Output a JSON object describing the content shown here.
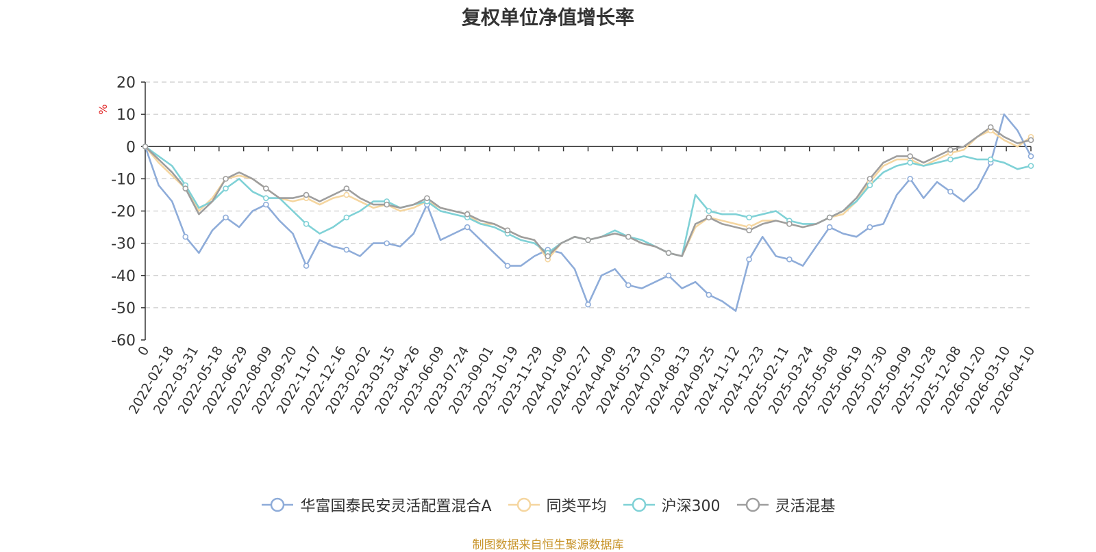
{
  "chart_data": {
    "type": "line",
    "title": "复权单位净值增长率",
    "ylabel": "%",
    "ylim": [
      -60,
      20
    ],
    "yticks": [
      20,
      10,
      0,
      -10,
      -20,
      -30,
      -40,
      -50,
      -60
    ],
    "grid": true,
    "legend_position": "bottom",
    "x_tick_labels": [
      "0",
      "2022-02-18",
      "2022-03-31",
      "2022-05-18",
      "2022-06-29",
      "2022-08-09",
      "2022-09-20",
      "2022-11-07",
      "2022-12-16",
      "2023-02-02",
      "2023-03-15",
      "2023-04-26",
      "2023-06-09",
      "2023-07-24",
      "2023-09-01",
      "2023-10-19",
      "2023-11-29",
      "2024-01-09",
      "2024-02-27",
      "2024-04-09",
      "2024-05-23",
      "2024-07-03",
      "2024-08-13",
      "2024-09-25",
      "2024-11-12",
      "2024-12-23",
      "2025-02-11",
      "2025-03-24",
      "2025-05-08",
      "2025-06-19",
      "2025-07-30",
      "2025-09-09",
      "2025-10-28",
      "2025-12-08",
      "2026-01-20",
      "2026-03-10",
      "2026-04-10"
    ],
    "series": [
      {
        "name": "华富国泰民安灵活配置混合A",
        "color": "#8eacd9",
        "values": [
          0,
          -12,
          -17,
          -28,
          -33,
          -26,
          -22,
          -25,
          -20,
          -18,
          -23,
          -27,
          -37,
          -29,
          -31,
          -32,
          -34,
          -30,
          -30,
          -31,
          -27,
          -18,
          -29,
          -27,
          -25,
          -29,
          -33,
          -37,
          -37,
          -34,
          -32,
          -33,
          -38,
          -49,
          -40,
          -38,
          -43,
          -44,
          -42,
          -40,
          -44,
          -42,
          -46,
          -48,
          -51,
          -35,
          -28,
          -34,
          -35,
          -37,
          -31,
          -25,
          -27,
          -28,
          -25,
          -24,
          -15,
          -10,
          -16,
          -11,
          -14,
          -17,
          -13,
          -5,
          10,
          5,
          -3
        ]
      },
      {
        "name": "同类平均",
        "color": "#f5d6a0",
        "values": [
          0,
          -5,
          -9,
          -13,
          -20,
          -16,
          -10,
          -9,
          -10,
          -13,
          -16,
          -17,
          -16,
          -18,
          -16,
          -15,
          -17,
          -19,
          -18,
          -20,
          -19,
          -17,
          -19,
          -20,
          -21,
          -24,
          -24,
          -26,
          -28,
          -29,
          -35,
          -30,
          -28,
          -29,
          -28,
          -27,
          -28,
          -30,
          -31,
          -33,
          -34,
          -25,
          -22,
          -23,
          -24,
          -25,
          -23,
          -23,
          -24,
          -25,
          -24,
          -22,
          -21,
          -17,
          -11,
          -6,
          -4,
          -4,
          -6,
          -4,
          -2,
          -1,
          3,
          5,
          2,
          0,
          3
        ]
      },
      {
        "name": "沪深300",
        "color": "#7fd1d6",
        "values": [
          0,
          -3,
          -6,
          -12,
          -19,
          -17,
          -13,
          -10,
          -14,
          -16,
          -16,
          -20,
          -24,
          -27,
          -25,
          -22,
          -20,
          -17,
          -17,
          -19,
          -18,
          -17,
          -20,
          -21,
          -22,
          -24,
          -25,
          -27,
          -29,
          -30,
          -33,
          -30,
          -28,
          -29,
          -28,
          -26,
          -28,
          -29,
          -31,
          -33,
          -34,
          -15,
          -20,
          -21,
          -21,
          -22,
          -21,
          -20,
          -23,
          -24,
          -24,
          -22,
          -20,
          -17,
          -12,
          -8,
          -6,
          -5,
          -6,
          -5,
          -4,
          -3,
          -4,
          -4,
          -5,
          -7,
          -6
        ]
      },
      {
        "name": "灵活混基",
        "color": "#9e9e9e",
        "values": [
          0,
          -4,
          -8,
          -13,
          -21,
          -17,
          -10,
          -8,
          -10,
          -13,
          -16,
          -16,
          -15,
          -17,
          -15,
          -13,
          -16,
          -18,
          -18,
          -19,
          -18,
          -16,
          -19,
          -20,
          -21,
          -23,
          -24,
          -26,
          -28,
          -29,
          -34,
          -30,
          -28,
          -29,
          -28,
          -27,
          -28,
          -30,
          -31,
          -33,
          -34,
          -24,
          -22,
          -24,
          -25,
          -26,
          -24,
          -23,
          -24,
          -25,
          -24,
          -22,
          -20,
          -16,
          -10,
          -5,
          -3,
          -3,
          -5,
          -3,
          -1,
          0,
          3,
          6,
          3,
          1,
          2
        ]
      }
    ]
  },
  "legend": {
    "items": [
      {
        "label": "华富国泰民安灵活配置混合A",
        "color": "#8eacd9"
      },
      {
        "label": "同类平均",
        "color": "#f5d6a0"
      },
      {
        "label": "沪深300",
        "color": "#7fd1d6"
      },
      {
        "label": "灵活混基",
        "color": "#9e9e9e"
      }
    ]
  },
  "source_note": "制图数据来自恒生聚源数据库",
  "colors": {
    "axis_label_unit": "#e02020",
    "grid": "#cccccc",
    "source_note": "#c8942a"
  }
}
